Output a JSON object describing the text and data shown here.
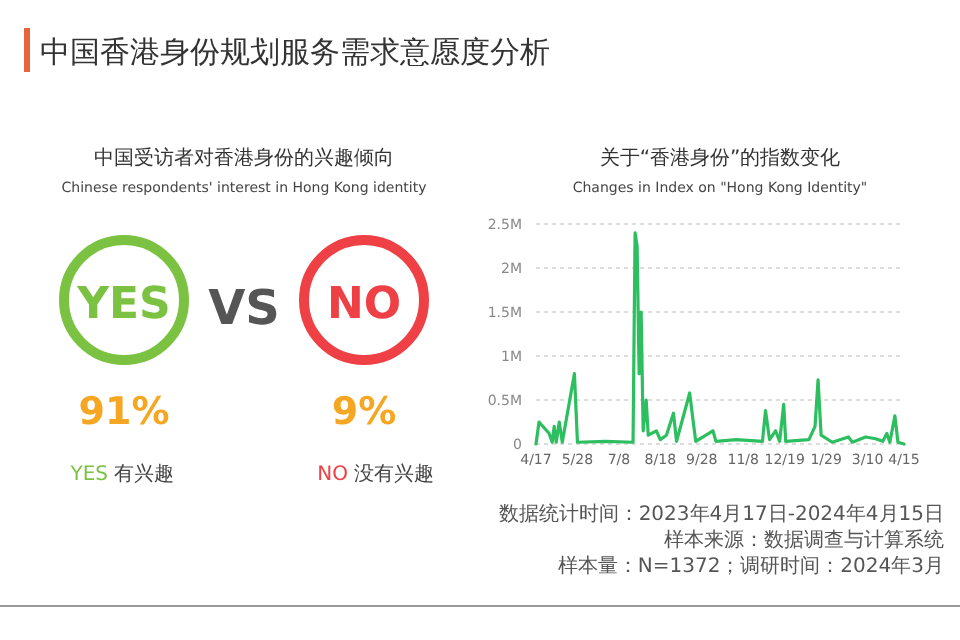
{
  "chart_data": [
    {
      "type": "other",
      "title": "中国香港身份规划服务需求意愿度分析",
      "subtitle": "中国受访者对香港身份的兴趣倾向",
      "annotations": [
        "Chinese respondents' interest in Hong Kong identity",
        "VS",
        "有兴趣",
        "没有兴趣"
      ],
      "categories": [
        "YES",
        "NO"
      ],
      "value_labels": [
        "91%",
        "9%"
      ],
      "colors": [
        "#7cc242",
        "#ee4045"
      ]
    },
    {
      "type": "line",
      "title": "关于“香港身份”的指数变化",
      "subtitle": "Changes in Index on \"Hong Kong Identity\"",
      "annotations": [
        "数据统计时间：2023年4月17日-2024年4月15日",
        "样本来源：数据调查与计算系统",
        "样本量：N=1372；调研时间：2024年3月"
      ],
      "xlim": [
        "2023-04-17",
        "2024-04-15"
      ],
      "xticks": [
        {
          "value": "2023-04-17",
          "label": "4/17"
        },
        {
          "value": "2023-05-28",
          "label": "5/28"
        },
        {
          "value": "2023-07-08",
          "label": "7/8"
        },
        {
          "value": "2023-08-18",
          "label": "8/18"
        },
        {
          "value": "2023-09-28",
          "label": "9/28"
        },
        {
          "value": "2023-11-08",
          "label": "11/8"
        },
        {
          "value": "2023-12-19",
          "label": "12/19"
        },
        {
          "value": "2024-01-29",
          "label": "1/29"
        },
        {
          "value": "2024-03-10",
          "label": "3/10"
        },
        {
          "value": "2024-04-15",
          "label": "4/15"
        }
      ],
      "ylim": [
        0,
        2.5
      ],
      "yticks": [
        0,
        {
          "value": 0.5,
          "label": "0.5M"
        },
        {
          "value": 1,
          "label": "1M"
        },
        {
          "value": 1.5,
          "label": "1.5M"
        },
        {
          "value": 2,
          "label": "2M"
        },
        {
          "value": 2.5,
          "label": "2.5M"
        }
      ],
      "grid": "y",
      "marker": "none",
      "line_style": "solid",
      "x": [
        "2023-04-17",
        "2023-04-20",
        "2023-04-30",
        "2023-05-03",
        "2023-05-05",
        "2023-05-07",
        "2023-05-10",
        "2023-05-13",
        "2023-05-25",
        "2023-05-28",
        "2023-06-25",
        "2023-07-22",
        "2023-07-24",
        "2023-07-26",
        "2023-07-28",
        "2023-07-30",
        "2023-08-01",
        "2023-08-04",
        "2023-08-06",
        "2023-08-14",
        "2023-08-18",
        "2023-08-24",
        "2023-08-31",
        "2023-09-03",
        "2023-09-16",
        "2023-09-19",
        "2023-09-22",
        "2023-10-09",
        "2023-10-12",
        "2023-11-01",
        "2023-11-27",
        "2023-11-30",
        "2023-12-04",
        "2023-12-10",
        "2023-12-14",
        "2023-12-18",
        "2023-12-20",
        "2024-01-12",
        "2024-01-18",
        "2024-01-21",
        "2024-01-24",
        "2024-02-04",
        "2024-02-20",
        "2024-02-24",
        "2024-03-08",
        "2024-03-18",
        "2024-03-25",
        "2024-03-29",
        "2024-04-01",
        "2024-04-06",
        "2024-04-09",
        "2024-04-15"
      ],
      "series": [
        {
          "color": "#2dbe60",
          "values": [
            0,
            0.25,
            0.12,
            0.02,
            0.2,
            0.02,
            0.25,
            0.02,
            0.8,
            0.02,
            0.03,
            0.02,
            2.4,
            2.25,
            0.8,
            1.5,
            0.15,
            0.5,
            0.1,
            0.15,
            0.05,
            0.1,
            0.35,
            0.03,
            0.58,
            0.3,
            0.03,
            0.15,
            0.03,
            0.05,
            0.03,
            0.38,
            0.05,
            0.15,
            0.03,
            0.45,
            0.03,
            0.05,
            0.2,
            0.73,
            0.1,
            0.02,
            0.08,
            0.02,
            0.08,
            0.06,
            0.03,
            0.12,
            0.02,
            0.32,
            0.02,
            0
          ]
        }
      ]
    }
  ]
}
